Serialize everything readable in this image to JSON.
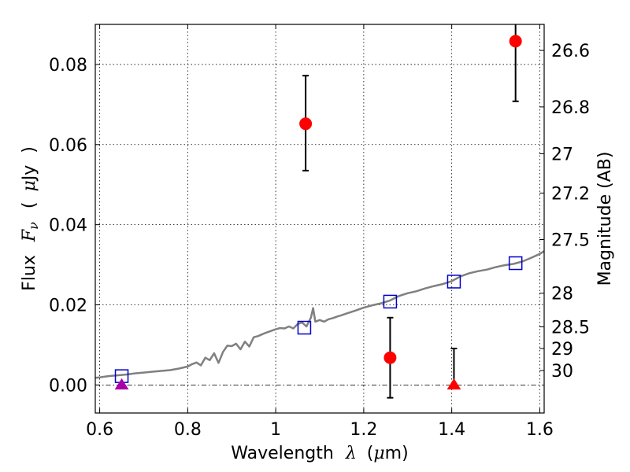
{
  "chart_data": {
    "type": "scatter",
    "title": "",
    "xlabel_prefix": "Wavelength",
    "xlabel_symbol": "λ",
    "xlabel_open": "(",
    "xlabel_mu": "μ",
    "xlabel_unit": "m)",
    "ylabel_prefix": "Flux",
    "ylabel_symbol": "F",
    "ylabel_sub": "ν",
    "ylabel_open": "(",
    "ylabel_mu": "μ",
    "ylabel_unit": "Jy",
    "ylabel_close": ")",
    "y2label": "Magnitude (AB)",
    "xlim": [
      0.59,
      1.61
    ],
    "ylim": [
      -0.007,
      0.09
    ],
    "grid": true,
    "x_ticks": [
      0.6,
      0.8,
      1.0,
      1.2,
      1.4,
      1.6
    ],
    "x_tick_labels": [
      "0.6",
      "0.8",
      "1",
      "1.2",
      "1.4",
      "1.6"
    ],
    "y_ticks": [
      0.0,
      0.02,
      0.04,
      0.06,
      0.08
    ],
    "y_tick_labels": [
      "0.00",
      "0.02",
      "0.04",
      "0.06",
      "0.08"
    ],
    "y2_ticks": [
      {
        "label": "26.6",
        "flux": 0.0835
      },
      {
        "label": "26.8",
        "flux": 0.0694
      },
      {
        "label": "27",
        "flux": 0.0577
      },
      {
        "label": "27.2",
        "flux": 0.0479
      },
      {
        "label": "27.5",
        "flux": 0.0363
      },
      {
        "label": "28",
        "flux": 0.0229
      },
      {
        "label": "28.5",
        "flux": 0.0145
      },
      {
        "label": "29",
        "flux": 0.0091
      },
      {
        "label": "30",
        "flux": 0.0036
      }
    ],
    "series": [
      {
        "marker": "line",
        "color": "#808080",
        "x": [
          0.59,
          0.6,
          0.62,
          0.64,
          0.66,
          0.68,
          0.7,
          0.72,
          0.74,
          0.76,
          0.78,
          0.8,
          0.81,
          0.82,
          0.83,
          0.84,
          0.85,
          0.86,
          0.87,
          0.88,
          0.89,
          0.9,
          0.91,
          0.92,
          0.93,
          0.94,
          0.95,
          0.96,
          0.97,
          0.98,
          0.99,
          1.0,
          1.01,
          1.02,
          1.03,
          1.04,
          1.05,
          1.06,
          1.07,
          1.08,
          1.085,
          1.09,
          1.1,
          1.11,
          1.12,
          1.13,
          1.14,
          1.15,
          1.16,
          1.18,
          1.2,
          1.22,
          1.24,
          1.26,
          1.28,
          1.3,
          1.32,
          1.34,
          1.36,
          1.38,
          1.4,
          1.42,
          1.44,
          1.46,
          1.48,
          1.5,
          1.52,
          1.54,
          1.56,
          1.58,
          1.6,
          1.61
        ],
        "y": [
          0.0018,
          0.0019,
          0.0022,
          0.0024,
          0.0026,
          0.0029,
          0.0031,
          0.0033,
          0.0035,
          0.0037,
          0.0041,
          0.0046,
          0.0052,
          0.0056,
          0.0049,
          0.0068,
          0.0062,
          0.0079,
          0.0055,
          0.0082,
          0.0098,
          0.0097,
          0.0103,
          0.0089,
          0.0108,
          0.0096,
          0.0119,
          0.0122,
          0.0127,
          0.0131,
          0.0135,
          0.0139,
          0.0142,
          0.0141,
          0.0146,
          0.0141,
          0.0152,
          0.0156,
          0.0146,
          0.0168,
          0.0192,
          0.0158,
          0.0162,
          0.0158,
          0.0164,
          0.0167,
          0.0171,
          0.0174,
          0.0178,
          0.0185,
          0.0193,
          0.0199,
          0.0204,
          0.0211,
          0.0222,
          0.0229,
          0.0234,
          0.0241,
          0.0247,
          0.0252,
          0.0259,
          0.0271,
          0.0279,
          0.0284,
          0.0288,
          0.0294,
          0.0299,
          0.0302,
          0.0308,
          0.0317,
          0.0327,
          0.0334
        ]
      },
      {
        "marker": "open-square",
        "color": "#0000cc",
        "x": [
          0.65,
          1.065,
          1.26,
          1.405,
          1.545
        ],
        "y": [
          0.0022,
          0.0143,
          0.0208,
          0.0258,
          0.0304
        ]
      },
      {
        "marker": "filled-circle",
        "color": "#ff0000",
        "x": [
          1.068,
          1.26,
          1.545
        ],
        "y": [
          0.0652,
          0.0068,
          0.0858
        ],
        "yerr_low": [
          0.0535,
          -0.0032,
          0.0708
        ],
        "yerr_high": [
          0.0772,
          0.0168,
          0.0905
        ]
      },
      {
        "marker": "triangle-up",
        "color": "#ff0000",
        "x": [
          1.405
        ],
        "y": [
          -0.0001
        ],
        "yerr_low": [
          -0.0001
        ],
        "yerr_high": [
          0.0091
        ]
      },
      {
        "marker": "triangle-up",
        "color": "#aa00aa",
        "x": [
          0.65
        ],
        "y": [
          -0.0001
        ]
      }
    ],
    "ref_line_y": 0.0
  }
}
